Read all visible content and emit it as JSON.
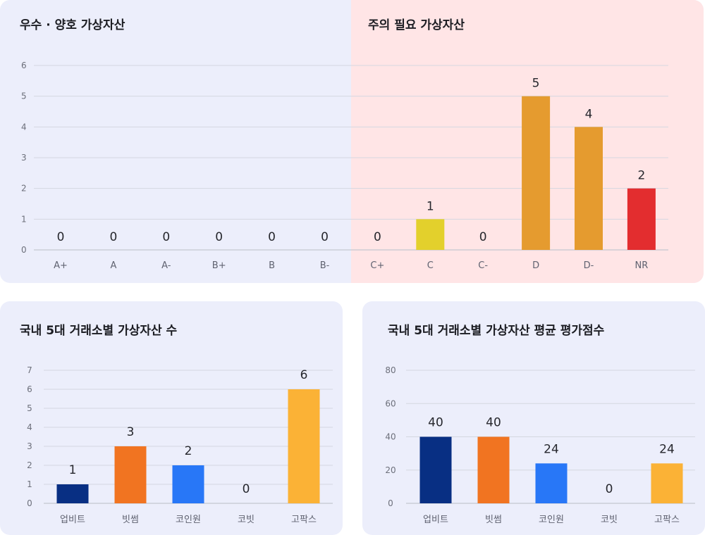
{
  "panels": {
    "good_title": "우수 · 양호 가상자산",
    "warning_title": "주의 필요 가상자산",
    "exchange_count_title": "국내 5대 거래소별 가상자산 수",
    "exchange_score_title": "국내 5대 거래소별 가상자산 평균 평가점수"
  },
  "colors": {
    "panel_bg": "#eceefb",
    "warning_bg": "#ffe5e6",
    "grade_yellow": "#e3d02c",
    "grade_orange": "#e59b2f",
    "grade_red": "#e32d2f",
    "upbit": "#082f83",
    "bithumb": "#f17421",
    "coinone": "#2877f7",
    "korbit": "#c8c8c8",
    "gopax": "#fbb236"
  },
  "chart_data": [
    {
      "id": "grade",
      "type": "bar",
      "categories": [
        "A+",
        "A",
        "A-",
        "B+",
        "B",
        "B-",
        "C+",
        "C",
        "C-",
        "D",
        "D-",
        "NR"
      ],
      "values": [
        0,
        0,
        0,
        0,
        0,
        0,
        0,
        1,
        0,
        5,
        4,
        2
      ],
      "bar_colors": [
        "#e3d02c",
        "#e3d02c",
        "#e3d02c",
        "#e3d02c",
        "#e3d02c",
        "#e3d02c",
        "#e3d02c",
        "#e3d02c",
        "#e59b2f",
        "#e59b2f",
        "#e59b2f",
        "#e32d2f"
      ],
      "yticks": [
        0,
        1,
        2,
        3,
        4,
        5,
        6
      ],
      "ylim": [
        0,
        6
      ],
      "grid": true
    },
    {
      "id": "exchange_count",
      "type": "bar",
      "categories": [
        "업비트",
        "빗썸",
        "코인원",
        "코빗",
        "고팍스"
      ],
      "values": [
        1,
        3,
        2,
        0,
        6
      ],
      "bar_colors": [
        "#082f83",
        "#f17421",
        "#2877f7",
        "#c8c8c8",
        "#fbb236"
      ],
      "yticks": [
        0,
        1,
        2,
        3,
        4,
        5,
        6,
        7
      ],
      "ylim": [
        0,
        7
      ],
      "grid": true
    },
    {
      "id": "exchange_score",
      "type": "bar",
      "categories": [
        "업비트",
        "빗썸",
        "코인원",
        "코빗",
        "고팍스"
      ],
      "values": [
        40,
        40,
        24,
        0,
        24
      ],
      "bar_colors": [
        "#082f83",
        "#f17421",
        "#2877f7",
        "#c8c8c8",
        "#fbb236"
      ],
      "yticks": [
        0,
        20,
        40,
        60,
        80
      ],
      "ylim": [
        0,
        80
      ],
      "grid": true
    }
  ]
}
